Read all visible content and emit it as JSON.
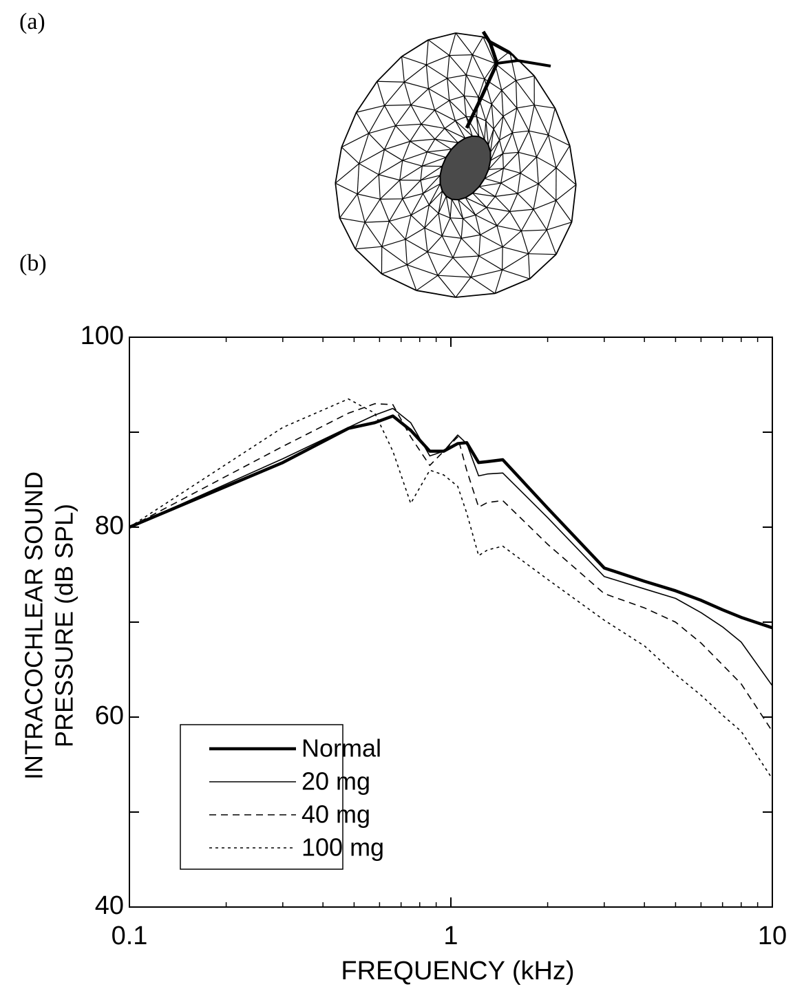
{
  "panel_labels": [
    "(a)",
    "(b)"
  ],
  "chart_data": {
    "type": "line",
    "xlabel": "FREQUENCY (kHz)",
    "ylabel": [
      "INTRACOCHLEAR SOUND",
      "PRESSURE (dB SPL)"
    ],
    "xscale": "log",
    "xlim": [
      0.1,
      10
    ],
    "xticks": [
      0.1,
      1,
      10
    ],
    "ylim": [
      40,
      100
    ],
    "yticks": [
      40,
      60,
      80,
      100
    ],
    "yminor": [
      50,
      70,
      90
    ],
    "legend": "lower left",
    "x": [
      0.1,
      0.3,
      0.48,
      0.58,
      0.66,
      0.75,
      0.86,
      0.95,
      1.05,
      1.12,
      1.22,
      1.3,
      1.45,
      2,
      3,
      4,
      5,
      6,
      7,
      8,
      10
    ],
    "series": [
      {
        "name": "Normal",
        "color": "#000000",
        "width": 4.5,
        "dash": "solid",
        "values": [
          80,
          86.8,
          90.4,
          91.0,
          91.7,
          90.2,
          88.0,
          88.0,
          88.8,
          88.9,
          86.8,
          86.9,
          87.1,
          82.0,
          75.7,
          74.3,
          73.3,
          72.3,
          71.3,
          70.5,
          69.4
        ]
      },
      {
        "name": "20 mg",
        "color": "#000000",
        "width": 1.6,
        "dash": "solid",
        "values": [
          80,
          87.2,
          90.5,
          91.8,
          92.5,
          91.0,
          87.5,
          88.0,
          89.7,
          88.8,
          85.4,
          85.6,
          85.7,
          81.0,
          74.8,
          73.5,
          72.5,
          71.0,
          69.5,
          67.9,
          63.3
        ]
      },
      {
        "name": "40 mg",
        "color": "#000000",
        "width": 1.6,
        "dash": "dashed",
        "values": [
          80,
          88.5,
          92.0,
          93.0,
          92.9,
          89.5,
          86.5,
          88.0,
          89.5,
          86.0,
          82.1,
          82.6,
          82.8,
          78.2,
          73.0,
          71.5,
          70.0,
          67.8,
          65.5,
          63.5,
          58.5
        ]
      },
      {
        "name": "100 mg",
        "color": "#000000",
        "width": 1.6,
        "dash": "dotted",
        "values": [
          80,
          90.5,
          93.5,
          92.0,
          88.0,
          82.5,
          86.0,
          85.5,
          84.3,
          81.5,
          77.0,
          77.6,
          78.0,
          74.5,
          70.2,
          67.5,
          64.5,
          62.3,
          60.2,
          58.5,
          53.5
        ]
      }
    ]
  }
}
